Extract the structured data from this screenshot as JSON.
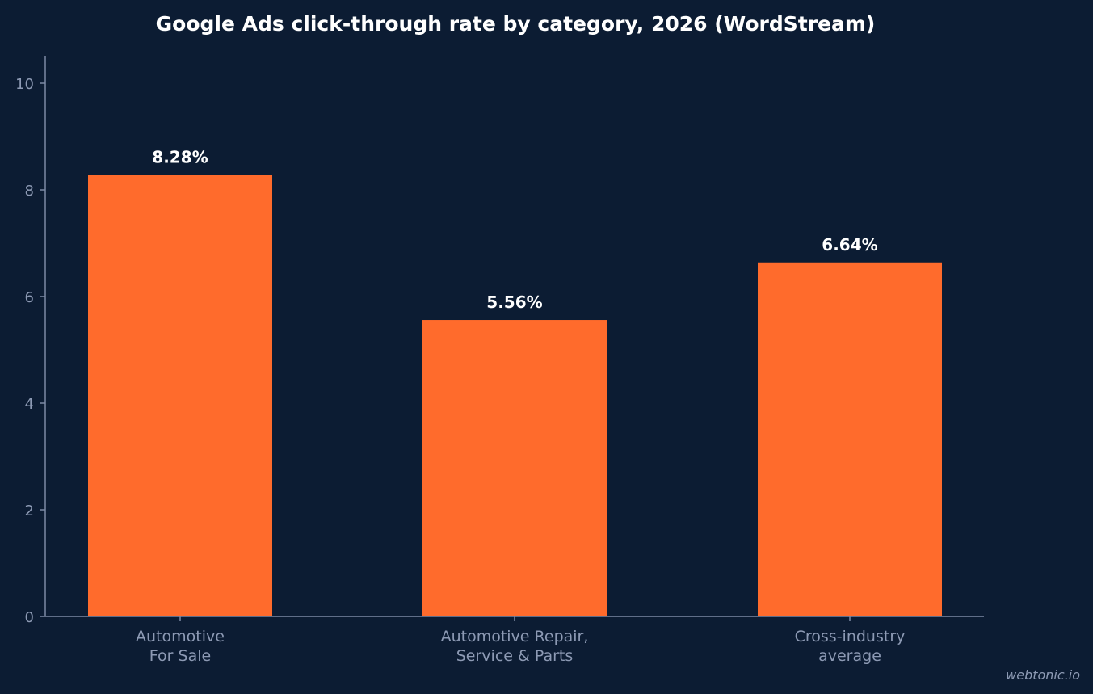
{
  "chart_data": {
    "type": "bar",
    "title": "Google Ads click-through rate by category, 2026 (WordStream)",
    "xlabel": "",
    "ylabel": "",
    "categories": [
      [
        "Automotive",
        "For Sale"
      ],
      [
        "Automotive Repair,",
        "Service & Parts"
      ],
      [
        "Cross-industry",
        "average"
      ]
    ],
    "values": [
      8.28,
      5.56,
      6.64
    ],
    "value_labels": [
      "8.28%",
      "5.56%",
      "6.64%"
    ],
    "ylim": [
      0,
      10.5
    ],
    "yticks": [
      0,
      2,
      4,
      6,
      8,
      10
    ],
    "grid": false,
    "bar_color": "#ff6b2c",
    "background": "#0c1c33"
  },
  "watermark": "webtonic.io"
}
